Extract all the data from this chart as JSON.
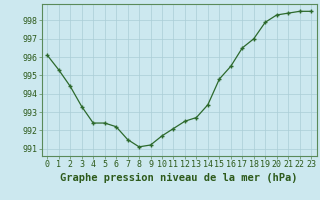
{
  "x": [
    0,
    1,
    2,
    3,
    4,
    5,
    6,
    7,
    8,
    9,
    10,
    11,
    12,
    13,
    14,
    15,
    16,
    17,
    18,
    19,
    20,
    21,
    22,
    23
  ],
  "y": [
    996.1,
    995.3,
    994.4,
    993.3,
    992.4,
    992.4,
    992.2,
    991.5,
    991.1,
    991.2,
    991.7,
    992.1,
    992.5,
    992.7,
    993.4,
    994.8,
    995.5,
    996.5,
    997.0,
    997.9,
    998.3,
    998.4,
    998.5,
    998.5
  ],
  "line_color": "#2d6a2d",
  "marker": "+",
  "bg_color": "#cce8ef",
  "grid_color": "#aacdd6",
  "title": "Graphe pression niveau de la mer (hPa)",
  "xlim": [
    -0.5,
    23.5
  ],
  "ylim": [
    990.6,
    998.9
  ],
  "yticks": [
    991,
    992,
    993,
    994,
    995,
    996,
    997,
    998
  ],
  "xtick_labels": [
    "0",
    "1",
    "2",
    "3",
    "4",
    "5",
    "6",
    "7",
    "8",
    "9",
    "10",
    "11",
    "12",
    "13",
    "14",
    "15",
    "16",
    "17",
    "18",
    "19",
    "20",
    "21",
    "22",
    "23"
  ],
  "title_fontsize": 7.5,
  "tick_fontsize": 6,
  "title_color": "#2d5a1b",
  "tick_color": "#2d5a1b",
  "spine_color": "#5a8a5a"
}
